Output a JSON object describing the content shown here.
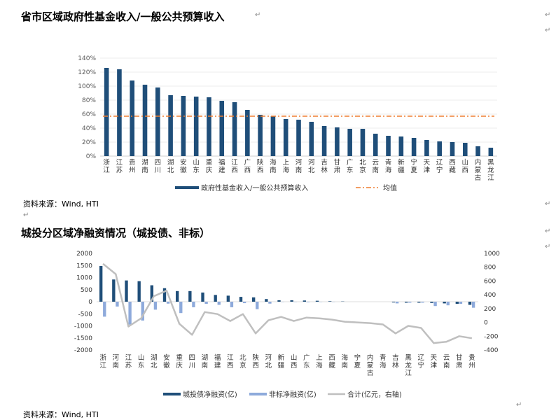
{
  "chart1_title": "省市区域政府性基金收入/一般公共预算收入",
  "chart2_title": "城投分区域净融资情况（城投债、非标）",
  "source1": "资料来源：Wind, HTI",
  "source2": "资料来源：Wind, HTI",
  "para_mark": "↵",
  "chart_data": [
    {
      "type": "bar",
      "title": "省市区域政府性基金收入/一般公共预算收入",
      "categories": [
        "浙江",
        "江苏",
        "贵州",
        "湖南",
        "四川",
        "湖北",
        "安徽",
        "山东",
        "重庆",
        "福建",
        "江西",
        "广西",
        "陕西",
        "海南",
        "上海",
        "河南",
        "河北",
        "吉林",
        "甘肃",
        "广东",
        "北京",
        "云南",
        "青海",
        "新疆",
        "宁夏",
        "天津",
        "辽宁",
        "西藏",
        "山西",
        "内蒙古",
        "黑龙江"
      ],
      "series": [
        {
          "name": "政府性基金收入/一般公共预算收入",
          "type": "bar",
          "color": "#1f4e79",
          "values": [
            126,
            124,
            108,
            102,
            98,
            87,
            86,
            85,
            84,
            79,
            77,
            66,
            59,
            57,
            53,
            52,
            49,
            43,
            41,
            39,
            39,
            32,
            29,
            28,
            26,
            23,
            21,
            20,
            19,
            14,
            12
          ]
        },
        {
          "name": "均值",
          "type": "line",
          "style": "dash-dot",
          "color": "#ed7d31",
          "value": 57
        }
      ],
      "y_ticks": [
        "0%",
        "20%",
        "40%",
        "60%",
        "80%",
        "100%",
        "120%",
        "140%"
      ],
      "ylim": [
        0,
        140
      ],
      "legend": "bottom"
    },
    {
      "type": "bar",
      "title": "城投分区域净融资情况（城投债、非标）",
      "categories": [
        "浙江",
        "河南",
        "江苏",
        "山东",
        "湖北",
        "安徽",
        "重庆",
        "四川",
        "湖南",
        "福建",
        "江西",
        "北京",
        "陕西",
        "河北",
        "新疆",
        "山西",
        "广东",
        "上海",
        "西藏",
        "海南",
        "宁夏",
        "内蒙古",
        "青海",
        "吉林",
        "黑龙江",
        "辽宁",
        "天津",
        "云南",
        "甘肃",
        "贵州"
      ],
      "series": [
        {
          "name": "城投债净融资(亿)",
          "type": "bar",
          "axis": "left",
          "color": "#1f4e79",
          "values": [
            1480,
            920,
            880,
            850,
            680,
            560,
            440,
            440,
            380,
            280,
            250,
            200,
            180,
            110,
            60,
            60,
            50,
            40,
            20,
            10,
            0,
            0,
            0,
            -30,
            -40,
            -40,
            -50,
            -70,
            -90,
            -130
          ]
        },
        {
          "name": "非标净融资(亿)",
          "type": "bar",
          "axis": "left",
          "color": "#8eaadb",
          "values": [
            -620,
            -200,
            -950,
            -780,
            -330,
            -80,
            -470,
            -230,
            -90,
            -130,
            -230,
            -60,
            -310,
            -80,
            -10,
            -10,
            -20,
            -10,
            -10,
            0,
            0,
            0,
            0,
            -70,
            -40,
            -40,
            -180,
            -150,
            -90,
            -250
          ]
        },
        {
          "name": "合计(亿元，右轴)",
          "type": "line",
          "axis": "right",
          "color": "#bfbfbf",
          "values": [
            850,
            700,
            -60,
            60,
            380,
            460,
            -20,
            -180,
            150,
            120,
            20,
            120,
            -160,
            30,
            80,
            20,
            70,
            60,
            40,
            10,
            0,
            -10,
            -30,
            -160,
            -50,
            -80,
            -300,
            -280,
            -200,
            -230
          ]
        }
      ],
      "y_left_ticks": [
        "-2000",
        "-1500",
        "-1000",
        "-500",
        "0",
        "500",
        "1000",
        "1500",
        "2000"
      ],
      "y_right_ticks": [
        "-400",
        "-200",
        "0",
        "200",
        "400",
        "600",
        "800",
        "1000"
      ],
      "ylim_left": [
        -2000,
        2000
      ],
      "ylim_right": [
        -400,
        1000
      ],
      "legend": "bottom"
    }
  ]
}
